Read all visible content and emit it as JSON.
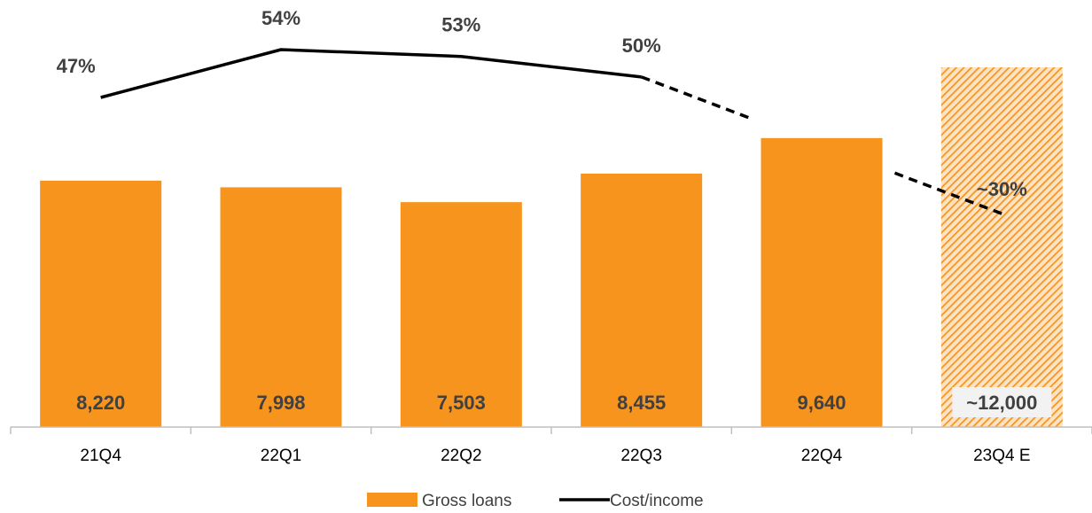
{
  "chart_data": {
    "type": "bar",
    "categories": [
      "21Q4",
      "22Q1",
      "22Q2",
      "22Q3",
      "22Q4",
      "23Q4 E"
    ],
    "series": [
      {
        "name": "Gross loans",
        "type": "bar",
        "values": [
          8220,
          7998,
          7503,
          8455,
          9640,
          12000
        ],
        "labels": [
          "8,220",
          "7,998",
          "7,503",
          "8,455",
          "9,640",
          "~12,000"
        ],
        "estimated": [
          false,
          false,
          false,
          false,
          false,
          true
        ],
        "color": "#F7941D"
      },
      {
        "name": "Cost/income",
        "type": "line",
        "values": [
          47,
          54,
          53,
          50,
          null,
          30
        ],
        "labels": [
          "47%",
          "54%",
          "53%",
          "50%",
          "",
          "~30%"
        ],
        "dashed_from_index": 3,
        "color": "#000000"
      }
    ],
    "legend": {
      "position": "bottom",
      "items": [
        "Gross loans",
        "Cost/income"
      ]
    },
    "grid": false
  }
}
